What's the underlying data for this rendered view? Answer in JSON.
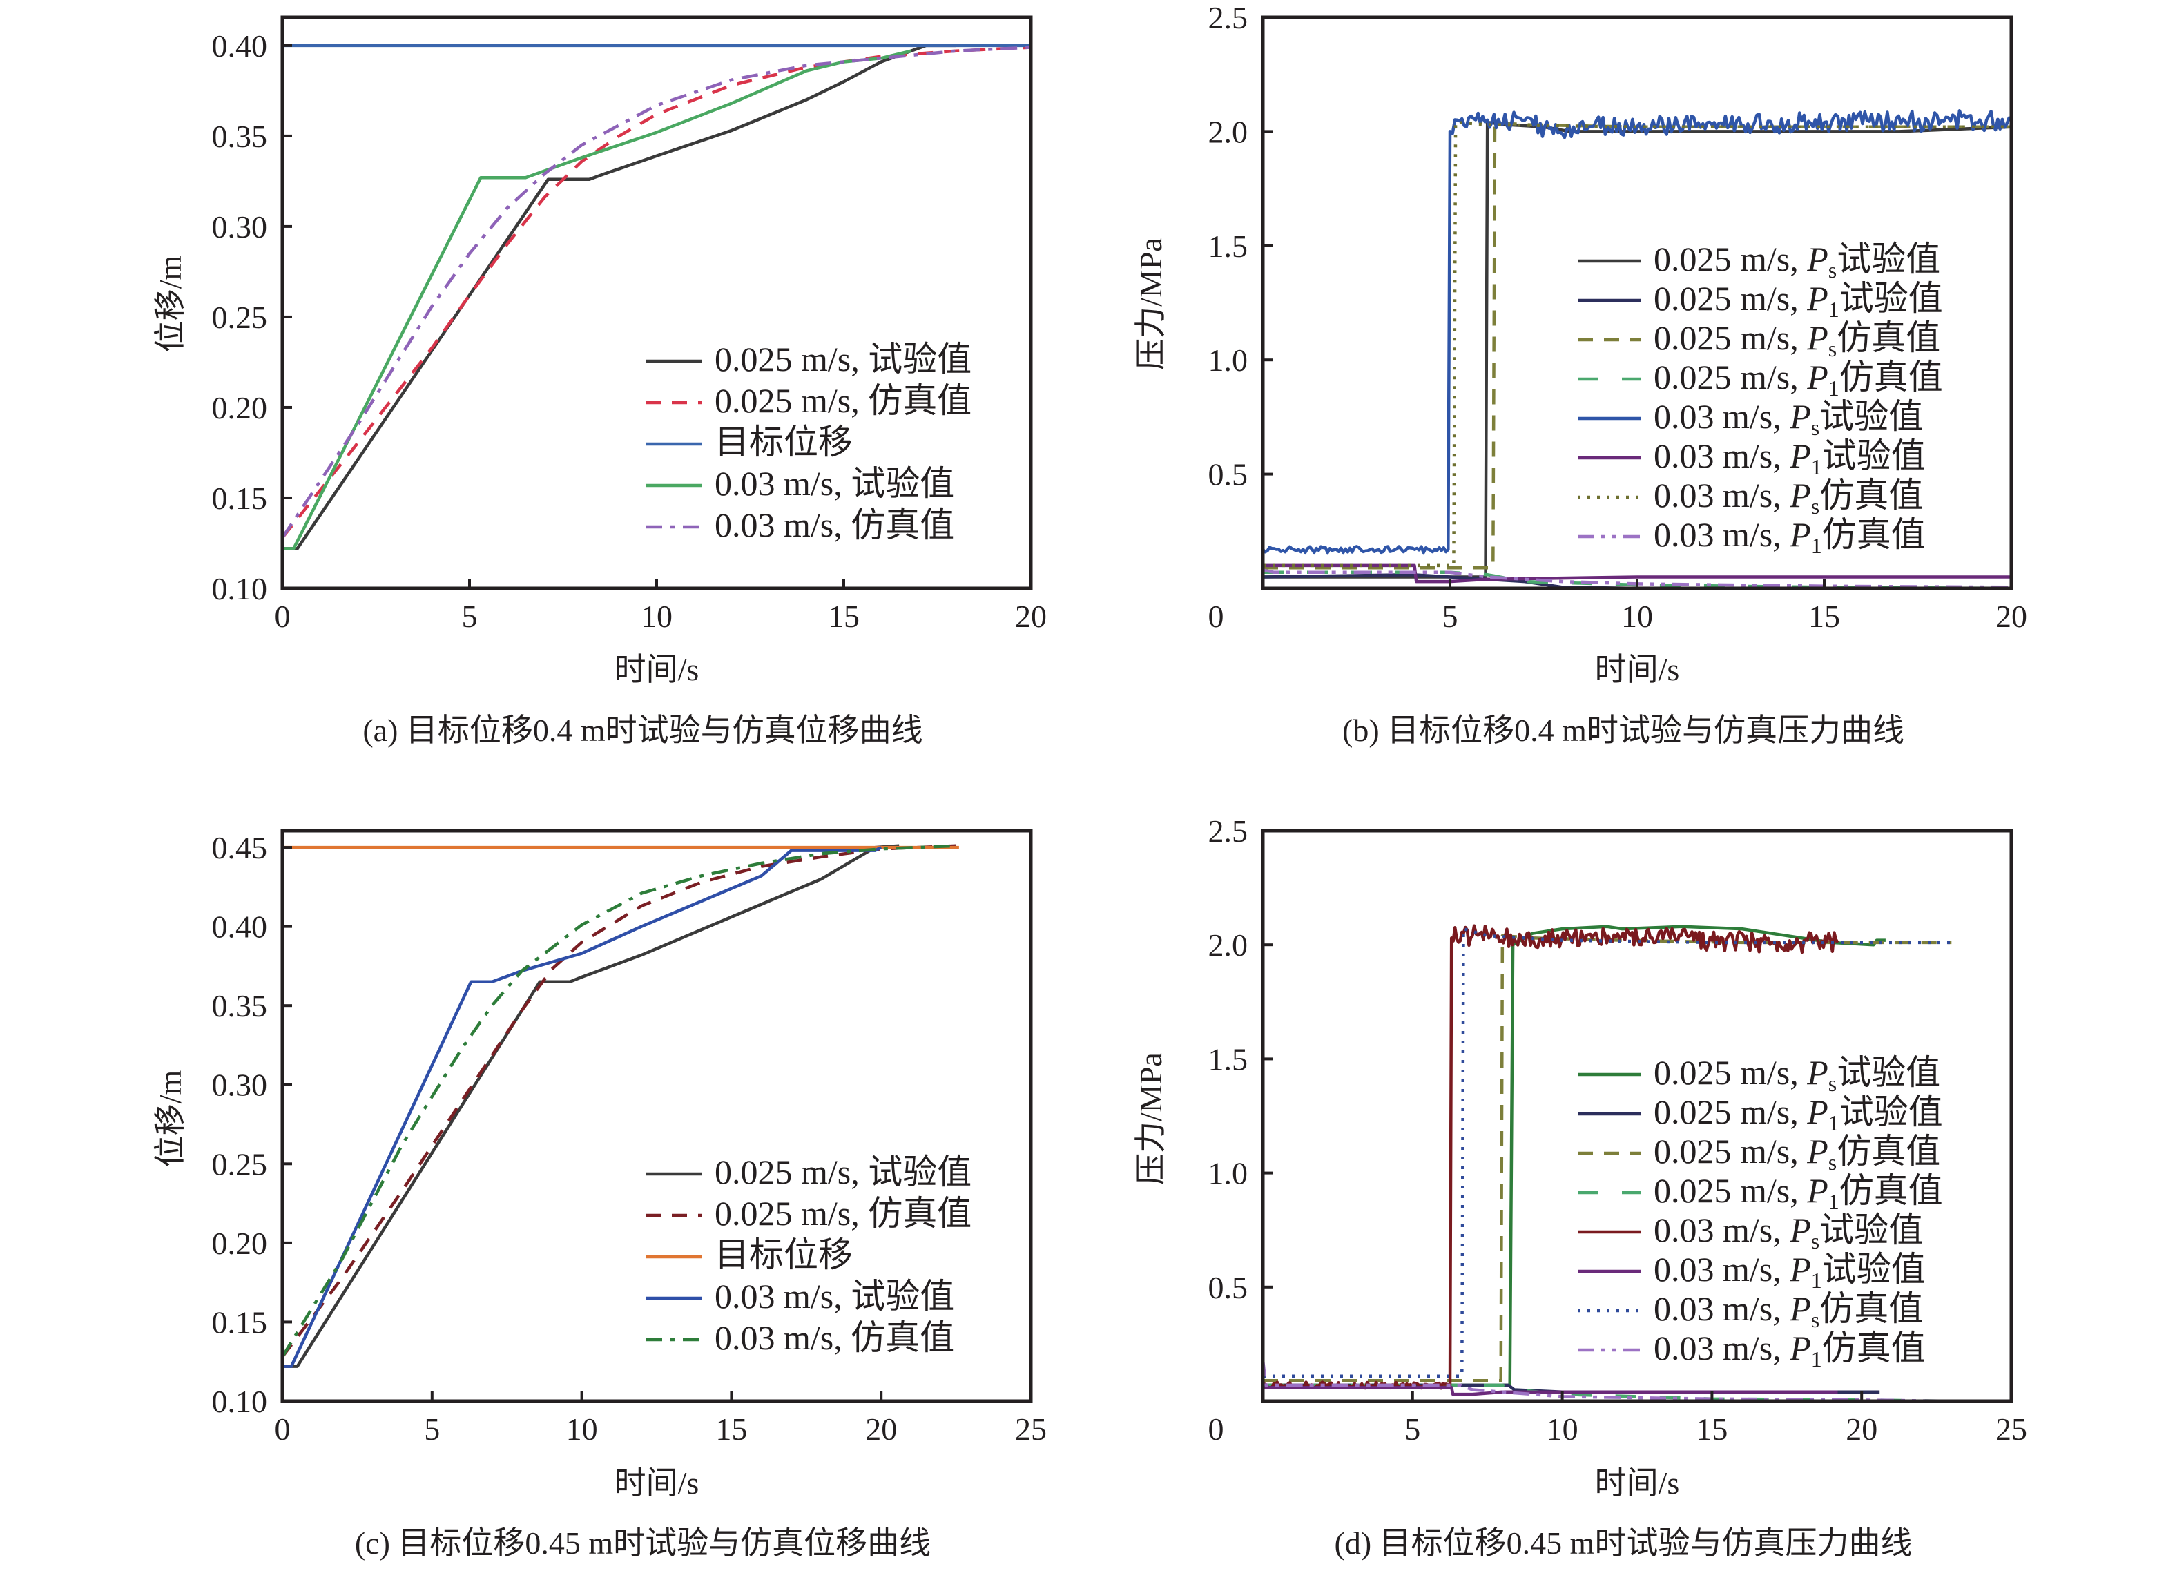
{
  "chart_data": [
    {
      "id": "a",
      "type": "line",
      "title": "",
      "caption": "(a) 目标位移0.4 m时试验与仿真位移曲线",
      "xlabel": "时间/s",
      "ylabel": "位移/m",
      "xlim": [
        0,
        20
      ],
      "ylim": [
        0.1,
        0.4156
      ],
      "xticks": [
        0,
        5,
        10,
        15,
        20
      ],
      "xtick_labels": [
        "0",
        "5",
        "10",
        "15",
        "20"
      ],
      "yticks": [
        0.1,
        0.15,
        0.2,
        0.25,
        0.3,
        0.35,
        0.4
      ],
      "ytick_labels": [
        "0.10",
        "0.15",
        "0.20",
        "0.25",
        "0.30",
        "0.35",
        "0.40"
      ],
      "grid": false,
      "legend_position": "lower-right",
      "series": [
        {
          "name": "0.025 m/s, 试验值",
          "color": "#3a3a3a",
          "dash": "solid",
          "x": [
            0,
            0.4,
            7.1,
            7.3,
            8.2,
            8.6,
            10,
            12,
            14,
            15,
            16,
            17.2,
            18
          ],
          "y": [
            0.122,
            0.122,
            0.326,
            0.326,
            0.326,
            0.329,
            0.339,
            0.353,
            0.37,
            0.38,
            0.391,
            0.4,
            0.4
          ]
        },
        {
          "name": "0.025 m/s, 仿真值",
          "color": "#d9344a",
          "dash": "dashed",
          "x": [
            0,
            2,
            4,
            5,
            6,
            7,
            8,
            9,
            10,
            12,
            14,
            16,
            18,
            20
          ],
          "y": [
            0.128,
            0.18,
            0.233,
            0.262,
            0.29,
            0.316,
            0.336,
            0.35,
            0.362,
            0.378,
            0.388,
            0.394,
            0.397,
            0.399
          ]
        },
        {
          "name": "目标位移",
          "color": "#3a66ad",
          "dash": "solid",
          "x": [
            0,
            20
          ],
          "y": [
            0.4,
            0.4
          ]
        },
        {
          "name": "0.03 m/s, 试验值",
          "color": "#4aa862",
          "dash": "solid",
          "x": [
            0,
            0.3,
            5.3,
            6.5,
            8,
            10,
            12,
            14,
            15,
            16,
            16.8
          ],
          "y": [
            0.122,
            0.122,
            0.327,
            0.327,
            0.338,
            0.352,
            0.368,
            0.386,
            0.391,
            0.393,
            0.397
          ]
        },
        {
          "name": "0.03 m/s, 仿真值",
          "color": "#8e63b8",
          "dash": "dashdot",
          "x": [
            0,
            2,
            4,
            5,
            6,
            7,
            8,
            10,
            12,
            14,
            16,
            18,
            20
          ],
          "y": [
            0.128,
            0.19,
            0.256,
            0.285,
            0.31,
            0.329,
            0.345,
            0.367,
            0.381,
            0.389,
            0.393,
            0.397,
            0.399
          ]
        }
      ]
    },
    {
      "id": "b",
      "type": "line",
      "title": "",
      "caption": "(b) 目标位移0.4 m时试验与仿真压力曲线",
      "xlabel": "时间/s",
      "ylabel": "压力/MPa",
      "xlim": [
        0,
        20
      ],
      "ylim": [
        0,
        2.5
      ],
      "xticks": [
        0,
        5,
        10,
        15,
        20
      ],
      "xtick_labels": [
        "0",
        "5",
        "10",
        "15",
        "20"
      ],
      "yticks": [
        0.5,
        1.0,
        1.5,
        2.0,
        2.5
      ],
      "ytick_labels": [
        "0.5",
        "1.0",
        "1.5",
        "2.0",
        "2.5"
      ],
      "grid": false,
      "legend_position": "center-right",
      "series": [
        {
          "name": "0.025 m/s, Ps试验值",
          "sym": "P",
          "sub": "s",
          "prefix": "0.025 m/s, ",
          "suffix": "试验值",
          "color": "#3a3a3a",
          "dash": "solid",
          "x": [
            0,
            5.95,
            6.0,
            6.5,
            7.5,
            8.2,
            10,
            15,
            17,
            20
          ],
          "y": [
            0.05,
            0.05,
            2.04,
            2.03,
            2.02,
            2.0,
            2.0,
            2.0,
            2.0,
            2.02
          ]
        },
        {
          "name": "0.025 m/s, P1试验值",
          "sym": "P",
          "sub": "1",
          "prefix": "0.025 m/s, ",
          "suffix": "试验值",
          "color": "#2c2f5c",
          "dash": "solid",
          "x": [
            0,
            4,
            5,
            6,
            7,
            8,
            10,
            20
          ],
          "y": [
            0.05,
            0.06,
            0.05,
            0.04,
            0.03,
            0.005,
            0.0,
            0.0
          ]
        },
        {
          "name": "0.025 m/s, Ps仿真值",
          "sym": "P",
          "sub": "s",
          "prefix": "0.025 m/s, ",
          "suffix": "仿真值",
          "color": "#7d7f3a",
          "dash": "dashed",
          "x": [
            0,
            6.15,
            6.2,
            7,
            10,
            15,
            20
          ],
          "y": [
            0.09,
            0.09,
            2.04,
            2.03,
            2.02,
            2.02,
            2.02
          ]
        },
        {
          "name": "0.025 m/s, P1仿真值",
          "sym": "P",
          "sub": "1",
          "prefix": "0.025 m/s, ",
          "suffix": "仿真值",
          "color": "#4aa86e",
          "dash": "longdash",
          "x": [
            0,
            5,
            6,
            7,
            8,
            10,
            15,
            20
          ],
          "y": [
            0.07,
            0.07,
            0.06,
            0.03,
            0.025,
            0.015,
            0.005,
            0.0
          ]
        },
        {
          "name": "0.03 m/s, Ps试验值",
          "sym": "P",
          "sub": "s",
          "prefix": "0.03 m/s, ",
          "suffix": "试验值",
          "color": "#2f55a8",
          "dash": "solid",
          "noise": 0.04,
          "x": [
            0,
            4.95,
            5.0,
            5.2,
            5.5,
            6,
            7,
            8,
            8.3,
            10,
            12,
            15,
            20
          ],
          "y": [
            0.17,
            0.17,
            2.0,
            2.05,
            2.06,
            2.05,
            2.05,
            1.99,
            2.02,
            2.02,
            2.03,
            2.04,
            2.05
          ]
        },
        {
          "name": "0.03 m/s, P1试验值",
          "sym": "P",
          "sub": "1",
          "prefix": "0.03 m/s, ",
          "suffix": "试验值",
          "color": "#6a2a7a",
          "dash": "solid",
          "x": [
            0,
            4.05,
            4.1,
            5,
            6,
            8,
            10,
            20
          ],
          "y": [
            0.1,
            0.1,
            0.03,
            0.03,
            0.04,
            0.045,
            0.05,
            0.05
          ]
        },
        {
          "name": "0.03 m/s, Ps仿真值",
          "sym": "P",
          "sub": "s",
          "prefix": "0.03 m/s, ",
          "suffix": "仿真值",
          "color": "#6e7030",
          "dash": "dotted",
          "x": [
            0,
            5.1,
            5.15,
            6,
            10,
            15,
            20
          ],
          "y": [
            0.1,
            0.1,
            2.04,
            2.03,
            2.02,
            2.02,
            2.02
          ]
        },
        {
          "name": "0.03 m/s, P1仿真值",
          "sym": "P",
          "sub": "1",
          "prefix": "0.03 m/s, ",
          "suffix": "仿真值",
          "color": "#9c72c4",
          "dash": "dashdotdot",
          "x": [
            0,
            0.3,
            4,
            5,
            6,
            7,
            8,
            10,
            15,
            20
          ],
          "y": [
            0.08,
            0.07,
            0.07,
            0.07,
            0.05,
            0.04,
            0.03,
            0.02,
            0.01,
            0.005
          ]
        }
      ]
    },
    {
      "id": "c",
      "type": "line",
      "title": "",
      "caption": "(c) 目标位移0.45 m时试验与仿真位移曲线",
      "xlabel": "时间/s",
      "ylabel": "位移/m",
      "xlim": [
        0,
        25
      ],
      "ylim": [
        0.1,
        0.4605
      ],
      "xticks": [
        0,
        5,
        10,
        15,
        20,
        25
      ],
      "xtick_labels": [
        "0",
        "5",
        "10",
        "15",
        "20",
        "25"
      ],
      "yticks": [
        0.1,
        0.15,
        0.2,
        0.25,
        0.3,
        0.35,
        0.4,
        0.45
      ],
      "ytick_labels": [
        "0.10",
        "0.15",
        "0.20",
        "0.25",
        "0.30",
        "0.35",
        "0.40",
        "0.45"
      ],
      "grid": false,
      "legend_position": "lower-right",
      "series": [
        {
          "name": "0.025 m/s, 试验值",
          "color": "#3a3a3a",
          "dash": "solid",
          "x": [
            0,
            0.5,
            8.6,
            9.6,
            10,
            12,
            14,
            16,
            18,
            19.8,
            20.6
          ],
          "y": [
            0.122,
            0.122,
            0.365,
            0.365,
            0.368,
            0.382,
            0.398,
            0.414,
            0.43,
            0.45,
            0.451
          ]
        },
        {
          "name": "0.025 m/s, 仿真值",
          "color": "#7a1f24",
          "dash": "dashed",
          "x": [
            0,
            2,
            4,
            6,
            8,
            9,
            10,
            12,
            14,
            16,
            18,
            20,
            22.5
          ],
          "y": [
            0.128,
            0.178,
            0.233,
            0.29,
            0.347,
            0.373,
            0.39,
            0.413,
            0.428,
            0.438,
            0.444,
            0.449,
            0.451
          ]
        },
        {
          "name": "目标位移",
          "color": "#e07632",
          "dash": "solid",
          "x": [
            0,
            22.6
          ],
          "y": [
            0.45,
            0.45
          ]
        },
        {
          "name": "0.03 m/s, 试验值",
          "color": "#2f4fa8",
          "dash": "solid",
          "x": [
            0,
            0.3,
            6.3,
            7,
            8,
            10,
            12,
            14,
            16,
            17,
            19.8,
            20
          ],
          "y": [
            0.122,
            0.122,
            0.365,
            0.365,
            0.372,
            0.383,
            0.4,
            0.416,
            0.432,
            0.448,
            0.448,
            0.45
          ]
        },
        {
          "name": "0.03 m/s, 仿真值",
          "color": "#2e7d3a",
          "dash": "dashdot",
          "x": [
            0,
            2,
            4,
            6,
            7,
            8,
            10,
            12,
            14,
            16,
            18,
            20,
            22.5
          ],
          "y": [
            0.128,
            0.19,
            0.262,
            0.323,
            0.35,
            0.372,
            0.401,
            0.421,
            0.432,
            0.44,
            0.446,
            0.449,
            0.451
          ]
        }
      ]
    },
    {
      "id": "d",
      "type": "line",
      "title": "",
      "caption": "(d) 目标位移0.45 m时试验与仿真压力曲线",
      "xlabel": "时间/s",
      "ylabel": "压力/MPa",
      "xlim": [
        0,
        25
      ],
      "ylim": [
        0,
        2.5
      ],
      "xticks": [
        0,
        5,
        10,
        15,
        20,
        25
      ],
      "xtick_labels": [
        "0",
        "5",
        "10",
        "15",
        "20",
        "25"
      ],
      "yticks": [
        0.5,
        1.0,
        1.5,
        2.0,
        2.5
      ],
      "ytick_labels": [
        "0.5",
        "1.0",
        "1.5",
        "2.0",
        "2.5"
      ],
      "grid": false,
      "legend_position": "center-right",
      "series": [
        {
          "name": "0.025 m/s, Ps试验值",
          "sym": "P",
          "sub": "s",
          "prefix": "0.025 m/s, ",
          "suffix": "试验值",
          "color": "#2e7d3a",
          "dash": "solid",
          "x": [
            0,
            8.25,
            8.35,
            9,
            10,
            11.5,
            12,
            14,
            16,
            17,
            18,
            19,
            20.4,
            20.5,
            20.8
          ],
          "y": [
            0.07,
            0.07,
            2.0,
            2.05,
            2.07,
            2.08,
            2.07,
            2.08,
            2.07,
            2.05,
            2.03,
            2.01,
            2.0,
            2.02,
            2.02
          ]
        },
        {
          "name": "0.025 m/s, P1试验值",
          "sym": "P",
          "sub": "1",
          "prefix": "0.025 m/s, ",
          "suffix": "试验值",
          "color": "#2c2f5c",
          "dash": "solid",
          "x": [
            0,
            8.2,
            8.4,
            10,
            15,
            20.6
          ],
          "y": [
            0.07,
            0.07,
            0.05,
            0.04,
            0.04,
            0.04
          ]
        },
        {
          "name": "0.025 m/s, Ps仿真值",
          "sym": "P",
          "sub": "s",
          "prefix": "0.025 m/s, ",
          "suffix": "仿真值",
          "color": "#7d7f3a",
          "dash": "dashed",
          "x": [
            0,
            7.95,
            8.0,
            9,
            12,
            16,
            20,
            23
          ],
          "y": [
            0.09,
            0.09,
            2.04,
            2.03,
            2.02,
            2.01,
            2.01,
            2.01
          ]
        },
        {
          "name": "0.025 m/s, P1仿真值",
          "sym": "P",
          "sub": "1",
          "prefix": "0.025 m/s, ",
          "suffix": "仿真值",
          "color": "#4aa86e",
          "dash": "longdash",
          "x": [
            0,
            8,
            8.5,
            10,
            15,
            20,
            23
          ],
          "y": [
            0.07,
            0.07,
            0.05,
            0.03,
            0.01,
            0.005,
            0.0
          ]
        },
        {
          "name": "0.03 m/s, Ps试验值",
          "sym": "P",
          "sub": "s",
          "prefix": "0.03 m/s, ",
          "suffix": "试验值",
          "color": "#7a1a1f",
          "dash": "solid",
          "noise": 0.04,
          "x": [
            0,
            6.25,
            6.3,
            7,
            9,
            11,
            13,
            15,
            17,
            19.2
          ],
          "y": [
            0.07,
            0.07,
            2.03,
            2.04,
            2.03,
            2.03,
            2.03,
            2.02,
            2.01,
            2.01
          ]
        },
        {
          "name": "0.03 m/s, P1试验值",
          "sym": "P",
          "sub": "1",
          "prefix": "0.03 m/s, ",
          "suffix": "试验值",
          "color": "#6a2a7a",
          "dash": "solid",
          "x": [
            0,
            6.3,
            6.35,
            7,
            8,
            10,
            15,
            19.2
          ],
          "y": [
            0.06,
            0.06,
            0.03,
            0.03,
            0.04,
            0.04,
            0.04,
            0.04
          ]
        },
        {
          "name": "0.03 m/s, Ps仿真值",
          "sym": "P",
          "sub": "s",
          "prefix": "0.03 m/s, ",
          "suffix": "仿真值",
          "color": "#2f4a9a",
          "dash": "dotted",
          "x": [
            0,
            6.65,
            6.7,
            7.5,
            10,
            15,
            20,
            23
          ],
          "y": [
            0.11,
            0.11,
            2.07,
            2.04,
            2.02,
            2.01,
            2.01,
            2.01
          ]
        },
        {
          "name": "0.03 m/s, P1仿真值",
          "sym": "P",
          "sub": "1",
          "prefix": "0.03 m/s, ",
          "suffix": "仿真值",
          "color": "#9c72c4",
          "dash": "dashdotdot",
          "x": [
            0,
            0.1,
            6.6,
            7,
            8,
            10,
            15,
            20,
            23
          ],
          "y": [
            0.18,
            0.07,
            0.07,
            0.05,
            0.04,
            0.02,
            0.01,
            0.005,
            0.0
          ]
        }
      ]
    }
  ]
}
